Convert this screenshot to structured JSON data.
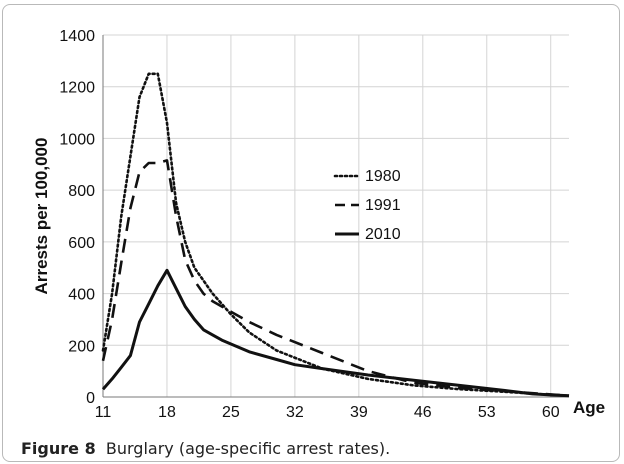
{
  "chart_data": {
    "type": "line",
    "xlabel": "Age",
    "ylabel": "Arrests per 100,000",
    "ylim": [
      0,
      1400
    ],
    "xlim": [
      11,
      62
    ],
    "x_ticks": [
      "11",
      "18",
      "25",
      "32",
      "39",
      "46",
      "53",
      "60"
    ],
    "y_ticks": [
      "0",
      "200",
      "400",
      "600",
      "800",
      "1000",
      "1200",
      "1400"
    ],
    "grid": true,
    "legend_position": "center-right",
    "series": [
      {
        "name": "1980",
        "style": "dotted",
        "x": [
          11,
          12,
          13,
          14,
          15,
          16,
          17,
          18,
          19,
          20,
          21,
          22,
          23,
          24,
          25,
          27,
          30,
          35,
          40,
          45,
          50,
          55,
          60,
          62
        ],
        "y": [
          180,
          400,
          700,
          930,
          1160,
          1250,
          1250,
          1060,
          750,
          600,
          500,
          450,
          400,
          360,
          320,
          250,
          180,
          110,
          70,
          45,
          30,
          20,
          8,
          5
        ]
      },
      {
        "name": "1991",
        "style": "dashed",
        "x": [
          11,
          12,
          13,
          14,
          15,
          16,
          17,
          18,
          19,
          20,
          21,
          22,
          23,
          24,
          25,
          27,
          30,
          35,
          40,
          45,
          50,
          55,
          60,
          62
        ],
        "y": [
          140,
          300,
          520,
          730,
          870,
          905,
          905,
          915,
          700,
          530,
          450,
          400,
          370,
          350,
          330,
          290,
          240,
          170,
          100,
          55,
          35,
          22,
          10,
          5
        ]
      },
      {
        "name": "2010",
        "style": "solid",
        "x": [
          11,
          12,
          13,
          14,
          15,
          16,
          17,
          18,
          19,
          20,
          21,
          22,
          23,
          24,
          25,
          27,
          30,
          32,
          35,
          40,
          45,
          50,
          55,
          58,
          60,
          62
        ],
        "y": [
          30,
          70,
          115,
          160,
          290,
          360,
          430,
          490,
          420,
          350,
          300,
          260,
          240,
          220,
          205,
          175,
          145,
          125,
          110,
          85,
          65,
          45,
          25,
          12,
          8,
          5
        ]
      }
    ]
  },
  "caption": {
    "label": "Figure 8",
    "text": "Burglary (age-specific arrest rates)."
  }
}
